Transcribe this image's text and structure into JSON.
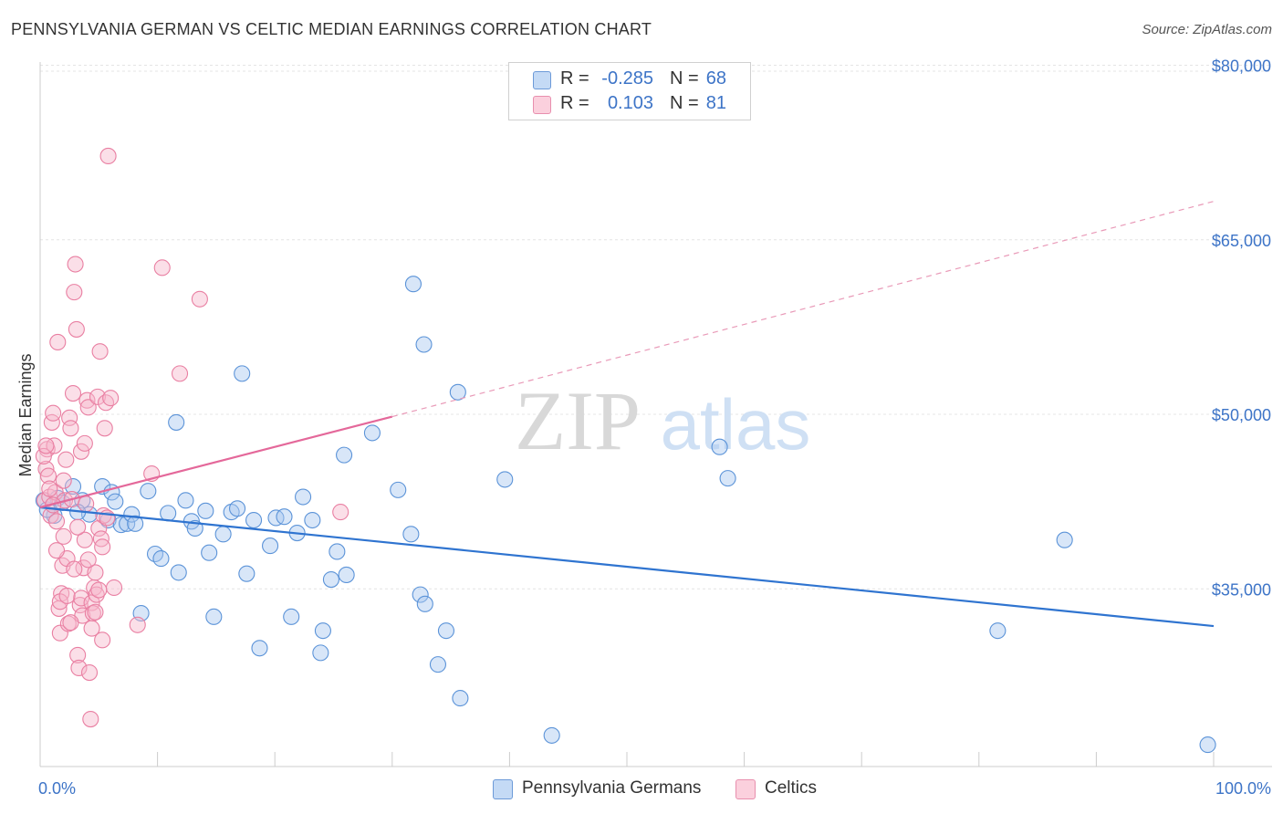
{
  "header": {
    "title": "PENNSYLVANIA GERMAN VS CELTIC MEDIAN EARNINGS CORRELATION CHART",
    "source": "Source: ZipAtlas.com"
  },
  "watermark": {
    "part1": "ZIP",
    "part2": "atlas"
  },
  "legend_top": {
    "rows": [
      {
        "r_label": "R =",
        "r_value": "-0.285",
        "n_label": "N =",
        "n_value": "68",
        "color": "#a8c8f0"
      },
      {
        "r_label": "R =",
        "r_value": "0.103",
        "n_label": "N =",
        "n_value": "81",
        "color": "#f6b8cc"
      }
    ]
  },
  "chart_data": {
    "type": "scatter",
    "title": "PENNSYLVANIA GERMAN VS CELTIC MEDIAN EARNINGS CORRELATION CHART",
    "xlabel": "",
    "ylabel": "Median Earnings",
    "xlim": [
      0,
      100
    ],
    "ylim": [
      20000,
      82500
    ],
    "x_tick_labels": [
      "0.0%",
      "100.0%"
    ],
    "y_ticks": [
      35000,
      50000,
      65000,
      80000
    ],
    "y_tick_labels": [
      "$35,000",
      "$50,000",
      "$65,000",
      "$80,000"
    ],
    "grid": true,
    "legend_position": "top-center",
    "series": [
      {
        "name": "Pennsylvania Germans",
        "color": "#a8c8f0",
        "stroke": "#5b93d8",
        "trend": {
          "x0": 0,
          "y0": 42000,
          "x1": 100,
          "y1": 31800
        },
        "points": [
          [
            0.3,
            42600
          ],
          [
            1.2,
            41300
          ],
          [
            1.5,
            42800
          ],
          [
            2.8,
            43800
          ],
          [
            3.6,
            42600
          ],
          [
            4.2,
            41400
          ],
          [
            5.3,
            43800
          ],
          [
            5.8,
            40900
          ],
          [
            6.1,
            43300
          ],
          [
            6.4,
            42500
          ],
          [
            6.9,
            40500
          ],
          [
            7.4,
            40600
          ],
          [
            7.8,
            41400
          ],
          [
            8.1,
            40600
          ],
          [
            8.6,
            32900
          ],
          [
            9.2,
            43400
          ],
          [
            9.8,
            38000
          ],
          [
            10.3,
            37600
          ],
          [
            10.9,
            41500
          ],
          [
            11.6,
            49300
          ],
          [
            11.8,
            36400
          ],
          [
            12.4,
            42600
          ],
          [
            12.9,
            40800
          ],
          [
            13.2,
            40200
          ],
          [
            14.1,
            41700
          ],
          [
            14.4,
            38100
          ],
          [
            14.8,
            32600
          ],
          [
            15.6,
            39700
          ],
          [
            16.3,
            41600
          ],
          [
            16.8,
            41900
          ],
          [
            17.2,
            53500
          ],
          [
            17.6,
            36300
          ],
          [
            18.2,
            40900
          ],
          [
            18.7,
            29900
          ],
          [
            19.6,
            38700
          ],
          [
            20.1,
            41100
          ],
          [
            20.8,
            41200
          ],
          [
            21.4,
            32600
          ],
          [
            21.9,
            39800
          ],
          [
            22.4,
            42900
          ],
          [
            23.2,
            40900
          ],
          [
            24.1,
            31400
          ],
          [
            23.9,
            29500
          ],
          [
            24.8,
            35800
          ],
          [
            25.3,
            38200
          ],
          [
            26.1,
            36200
          ],
          [
            25.9,
            46500
          ],
          [
            28.3,
            48400
          ],
          [
            30.5,
            43500
          ],
          [
            31.6,
            39700
          ],
          [
            32.7,
            56000
          ],
          [
            31.8,
            61200
          ],
          [
            32.4,
            34500
          ],
          [
            32.8,
            33700
          ],
          [
            33.9,
            28500
          ],
          [
            34.6,
            31400
          ],
          [
            35.8,
            25600
          ],
          [
            35.6,
            51900
          ],
          [
            39.6,
            44400
          ],
          [
            43.6,
            22400
          ],
          [
            57.9,
            47200
          ],
          [
            58.6,
            44500
          ],
          [
            87.3,
            39200
          ],
          [
            81.6,
            31400
          ],
          [
            99.5,
            21600
          ],
          [
            0.6,
            41800
          ],
          [
            1.9,
            42400
          ],
          [
            3.2,
            41600
          ]
        ]
      },
      {
        "name": "Celtics",
        "color": "#f6b8cc",
        "stroke": "#e97fa2",
        "trend": {
          "x0": 0,
          "y0": 42000,
          "x1": 30,
          "y1": 49800
        },
        "trend_ext": {
          "x0": 30,
          "y0": 49800,
          "x1": 100,
          "y1": 68300
        },
        "points": [
          [
            0.4,
            42600
          ],
          [
            0.5,
            45300
          ],
          [
            0.6,
            47000
          ],
          [
            0.7,
            44700
          ],
          [
            0.8,
            42900
          ],
          [
            0.9,
            41300
          ],
          [
            1.0,
            49300
          ],
          [
            1.1,
            50100
          ],
          [
            1.2,
            47300
          ],
          [
            1.3,
            43300
          ],
          [
            1.4,
            40800
          ],
          [
            1.5,
            56200
          ],
          [
            1.6,
            33300
          ],
          [
            1.7,
            31200
          ],
          [
            1.8,
            34600
          ],
          [
            1.9,
            37000
          ],
          [
            2.0,
            44300
          ],
          [
            2.1,
            42600
          ],
          [
            2.2,
            46100
          ],
          [
            2.3,
            37600
          ],
          [
            2.4,
            32000
          ],
          [
            2.5,
            49700
          ],
          [
            2.6,
            48800
          ],
          [
            2.7,
            42700
          ],
          [
            2.8,
            51800
          ],
          [
            2.9,
            60500
          ],
          [
            3.0,
            62900
          ],
          [
            3.1,
            57300
          ],
          [
            3.2,
            29300
          ],
          [
            3.3,
            28200
          ],
          [
            3.4,
            33600
          ],
          [
            3.5,
            34200
          ],
          [
            3.6,
            32700
          ],
          [
            3.7,
            36800
          ],
          [
            3.8,
            39200
          ],
          [
            3.9,
            42300
          ],
          [
            4.0,
            51200
          ],
          [
            4.1,
            50600
          ],
          [
            4.2,
            27800
          ],
          [
            4.3,
            23800
          ],
          [
            4.4,
            33800
          ],
          [
            4.5,
            32900
          ],
          [
            4.6,
            35100
          ],
          [
            4.7,
            36400
          ],
          [
            4.8,
            34500
          ],
          [
            4.9,
            51500
          ],
          [
            5.0,
            40200
          ],
          [
            5.1,
            55400
          ],
          [
            5.2,
            39300
          ],
          [
            5.3,
            30600
          ],
          [
            5.4,
            41300
          ],
          [
            5.5,
            48800
          ],
          [
            5.6,
            51000
          ],
          [
            5.7,
            41100
          ],
          [
            5.8,
            72200
          ],
          [
            6.0,
            51400
          ],
          [
            6.3,
            35100
          ],
          [
            8.3,
            31900
          ],
          [
            9.5,
            44900
          ],
          [
            10.4,
            62600
          ],
          [
            11.9,
            53500
          ],
          [
            13.6,
            59900
          ],
          [
            25.6,
            41600
          ],
          [
            0.3,
            46400
          ],
          [
            0.5,
            47300
          ],
          [
            0.8,
            43600
          ],
          [
            1.1,
            42200
          ],
          [
            1.4,
            38300
          ],
          [
            1.7,
            33900
          ],
          [
            2.0,
            39500
          ],
          [
            2.3,
            34400
          ],
          [
            2.6,
            32100
          ],
          [
            2.9,
            36700
          ],
          [
            3.2,
            40300
          ],
          [
            3.5,
            46800
          ],
          [
            3.8,
            47500
          ],
          [
            4.1,
            37500
          ],
          [
            4.4,
            31600
          ],
          [
            4.7,
            33000
          ],
          [
            5.0,
            34900
          ],
          [
            5.3,
            38600
          ]
        ]
      }
    ]
  },
  "legend_bottom": {
    "items": [
      {
        "label": "Pennsylvania Germans",
        "color": "#a8c8f0"
      },
      {
        "label": "Celtics",
        "color": "#f6b8cc"
      }
    ]
  }
}
